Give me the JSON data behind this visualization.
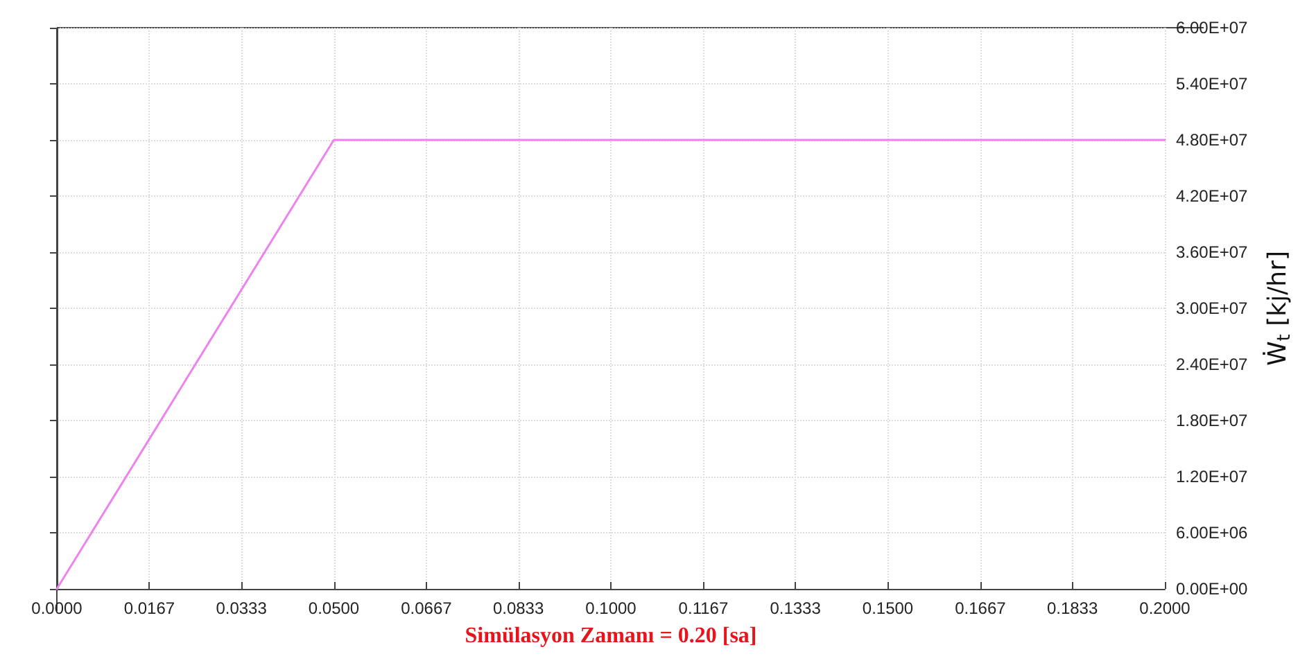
{
  "chart_data": {
    "type": "line",
    "xlabel": "Simülasyon Zamanı = 0.20 [sa]",
    "ylabel": "Ẇ$_{t}$ [kj/hr]",
    "x": [
      0,
      0.05,
      0.2
    ],
    "series": [
      {
        "color": "#ee82ee",
        "values": [
          0,
          48000000,
          48000000
        ]
      }
    ],
    "xlim": [
      0,
      0.2
    ],
    "xticks": [
      {
        "value": 0,
        "label": "0.0000"
      },
      {
        "value": 0.0167,
        "label": "0.0167"
      },
      {
        "value": 0.0333,
        "label": "0.0333"
      },
      {
        "value": 0.05,
        "label": "0.0500"
      },
      {
        "value": 0.0667,
        "label": "0.0667"
      },
      {
        "value": 0.0833,
        "label": "0.0833"
      },
      {
        "value": 0.1,
        "label": "0.1000"
      },
      {
        "value": 0.1167,
        "label": "0.1167"
      },
      {
        "value": 0.1333,
        "label": "0.1333"
      },
      {
        "value": 0.15,
        "label": "0.1500"
      },
      {
        "value": 0.1667,
        "label": "0.1667"
      },
      {
        "value": 0.1833,
        "label": "0.1833"
      },
      {
        "value": 0.2,
        "label": "0.2000"
      }
    ],
    "ylim": [
      0,
      60000000
    ],
    "yticks": [
      {
        "value": 0,
        "label": "0.00E+00"
      },
      {
        "value": 6000000,
        "label": "6.00E+06"
      },
      {
        "value": 12000000,
        "label": "1.20E+07"
      },
      {
        "value": 18000000,
        "label": "1.80E+07"
      },
      {
        "value": 24000000,
        "label": "2.40E+07"
      },
      {
        "value": 30000000,
        "label": "3.00E+07"
      },
      {
        "value": 36000000,
        "label": "3.60E+07"
      },
      {
        "value": 42000000,
        "label": "4.20E+07"
      },
      {
        "value": 48000000,
        "label": "4.80E+07"
      },
      {
        "value": 54000000,
        "label": "5.40E+07"
      },
      {
        "value": 60000000,
        "label": "6.00E+07"
      }
    ],
    "grid": true,
    "marker": "none",
    "line_style": "solid"
  }
}
